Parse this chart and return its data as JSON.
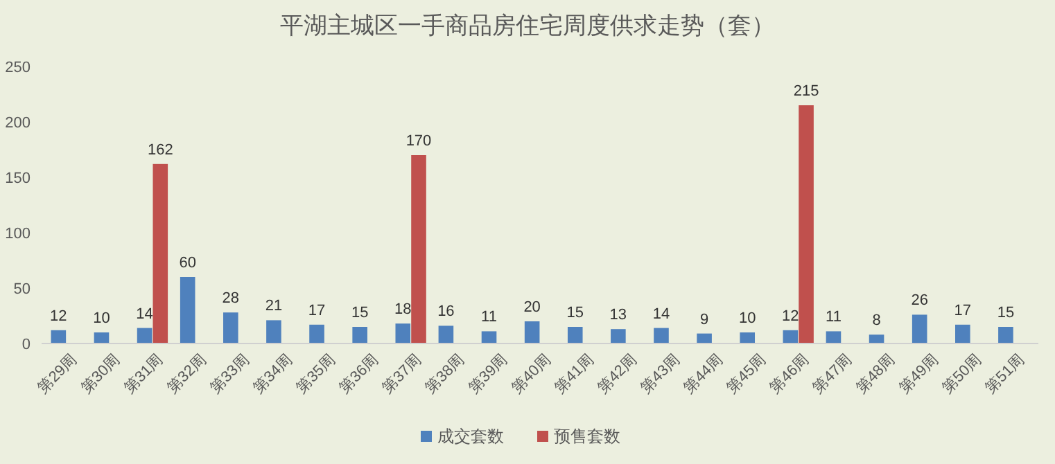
{
  "chart_data": {
    "type": "bar",
    "title": "平湖主城区一手商品房住宅周度供求走势（套）",
    "categories": [
      "第29周",
      "第30周",
      "第31周",
      "第32周",
      "第33周",
      "第34周",
      "第35周",
      "第36周",
      "第37周",
      "第38周",
      "第39周",
      "第40周",
      "第41周",
      "第42周",
      "第43周",
      "第44周",
      "第45周",
      "第46周",
      "第47周",
      "第48周",
      "第49周",
      "第50周",
      "第51周"
    ],
    "series": [
      {
        "name": "成交套数",
        "color": "#4f81bd",
        "values": [
          12,
          10,
          14,
          60,
          28,
          21,
          17,
          15,
          18,
          16,
          11,
          20,
          15,
          13,
          14,
          9,
          10,
          12,
          11,
          8,
          26,
          17,
          15
        ]
      },
      {
        "name": "预售套数",
        "color": "#c0504d",
        "values": [
          null,
          null,
          162,
          null,
          null,
          null,
          null,
          null,
          170,
          null,
          null,
          null,
          null,
          null,
          null,
          null,
          null,
          215,
          null,
          null,
          null,
          null,
          null
        ]
      }
    ],
    "ylim": [
      0,
      250
    ],
    "yticks": [
      0,
      50,
      100,
      150,
      200,
      250
    ],
    "data_labels": true,
    "legend": "bottom",
    "grid": false
  }
}
